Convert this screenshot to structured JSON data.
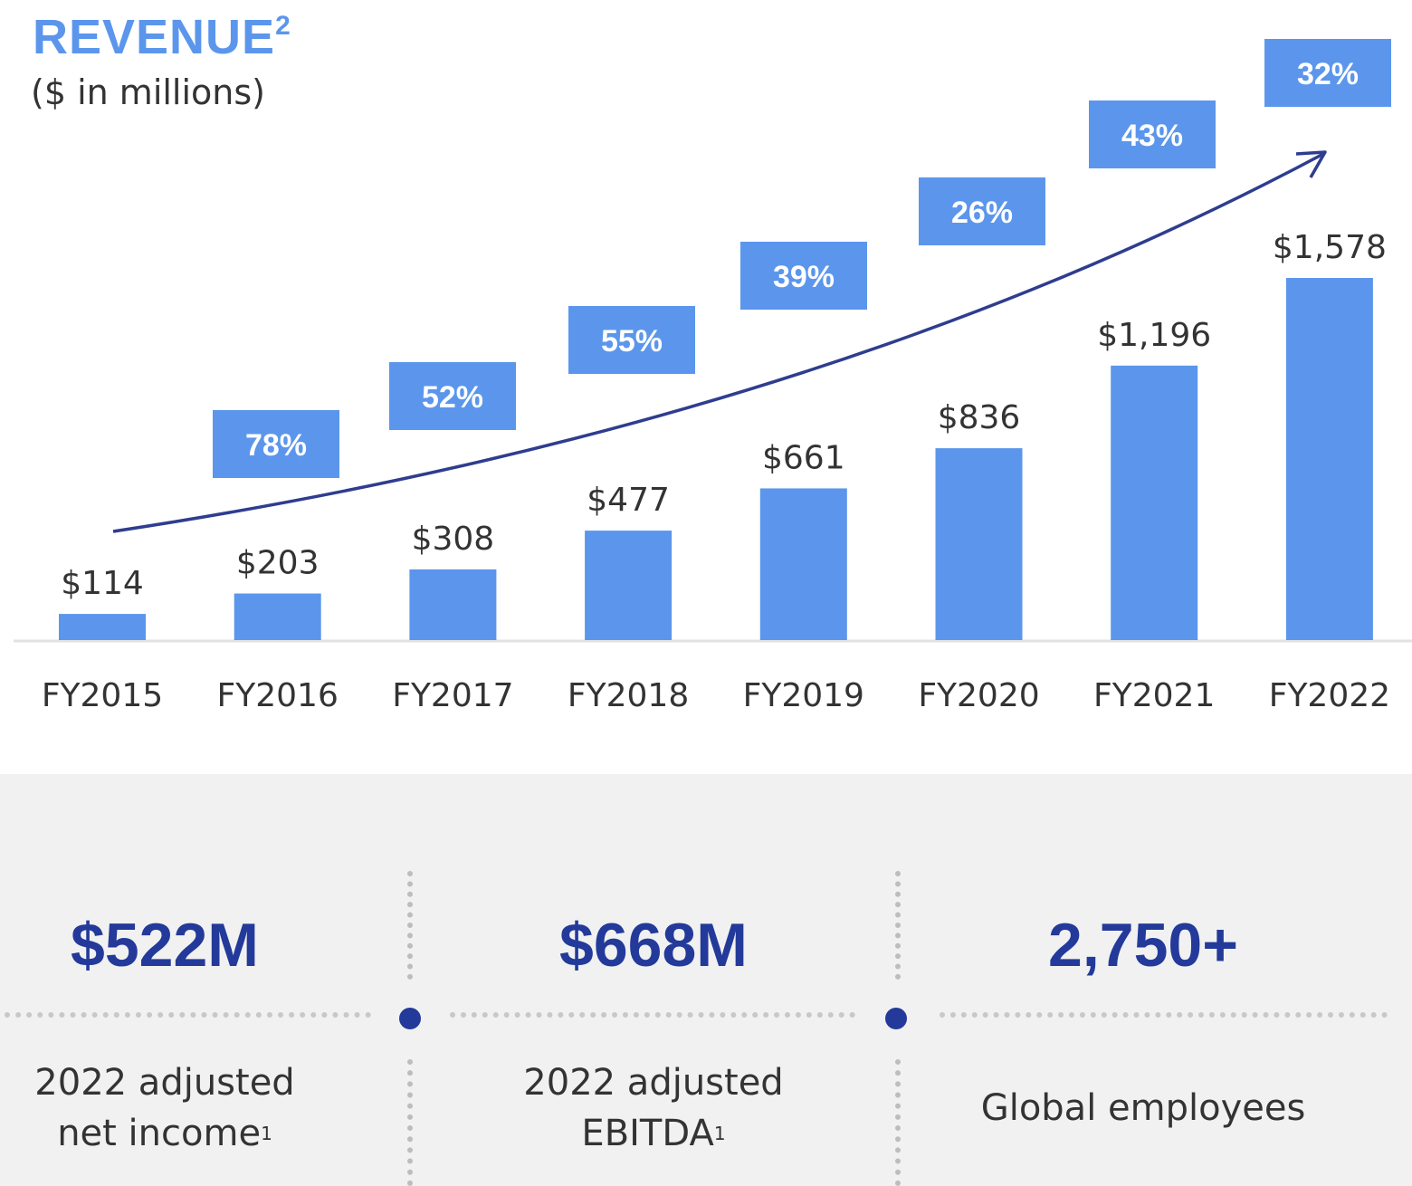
{
  "chart_data": {
    "type": "bar",
    "title": "REVENUE",
    "title_footnote": "2",
    "subtitle": "($ in millions)",
    "categories": [
      "FY2015",
      "FY2016",
      "FY2017",
      "FY2018",
      "FY2019",
      "FY2020",
      "FY2021",
      "FY2022"
    ],
    "values": [
      114,
      203,
      308,
      477,
      661,
      836,
      1196,
      1578
    ],
    "value_labels": [
      "$114",
      "$203",
      "$308",
      "$477",
      "$661",
      "$836",
      "$1,196",
      "$1,578"
    ],
    "growth_labels": [
      "",
      "78%",
      "52%",
      "55%",
      "39%",
      "26%",
      "43%",
      "32%"
    ],
    "ylim": [
      0,
      1578
    ],
    "grid": false,
    "xlabel": "",
    "ylabel": "",
    "colors": {
      "bar": "#5b96ec",
      "growth_box": "#5b96ec",
      "arrow": "#2e3d8f"
    }
  },
  "stats": [
    {
      "value": "$522M",
      "label_line1": "2022 adjusted",
      "label_line2": "net income",
      "footnote": "1"
    },
    {
      "value": "$668M",
      "label_line1": "2022 adjusted",
      "label_line2": "EBITDA",
      "footnote": "1"
    },
    {
      "value": "2,750+",
      "label_line1": "Global employees",
      "label_line2": "",
      "footnote": ""
    }
  ]
}
